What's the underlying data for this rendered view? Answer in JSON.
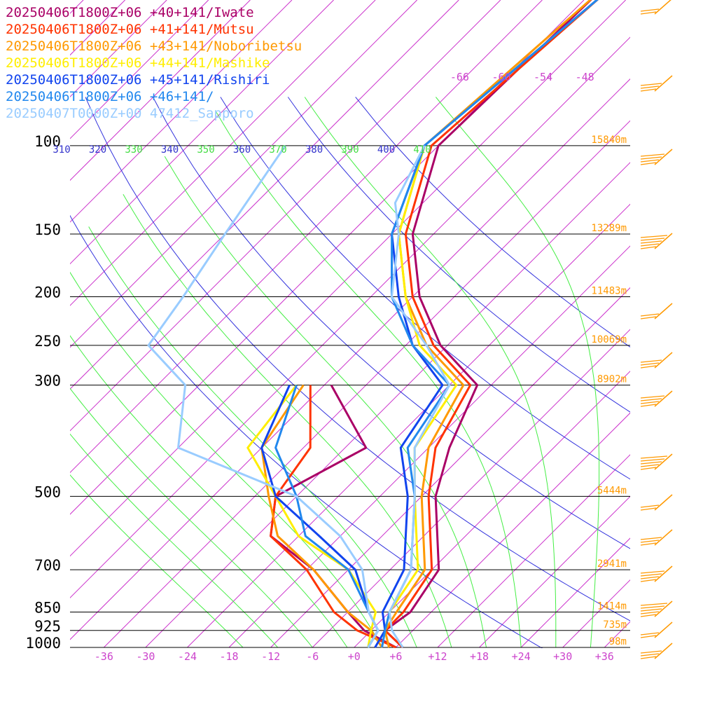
{
  "chart_data": {
    "type": "line",
    "title": "",
    "xlabel": "",
    "ylabel": "",
    "x_ticks": [
      "-36",
      "-30",
      "-24",
      "-18",
      "-12",
      "-6",
      "+0",
      "+6",
      "+12",
      "+18",
      "+24",
      "+30",
      "+36"
    ],
    "pressure_levels": [
      {
        "p": 100,
        "label": "100",
        "height": "15840m"
      },
      {
        "p": 150,
        "label": "150",
        "height": "13289m"
      },
      {
        "p": 200,
        "label": "200",
        "height": "11483m"
      },
      {
        "p": 250,
        "label": "250",
        "height": "10069m"
      },
      {
        "p": 300,
        "label": "300",
        "height": "8902m"
      },
      {
        "p": 500,
        "label": "500",
        "height": "5444m"
      },
      {
        "p": 700,
        "label": "700",
        "height": "2941m"
      },
      {
        "p": 850,
        "label": "850",
        "height": "1414m"
      },
      {
        "p": 925,
        "label": "925",
        "height": "735m"
      },
      {
        "p": 1000,
        "label": "1000",
        "height": "98m"
      }
    ],
    "top_isotherm_labels": [
      "-66",
      "-60",
      "-54",
      "-48"
    ],
    "theta_labels": [
      {
        "text": "310",
        "kind": "theta"
      },
      {
        "text": "320",
        "kind": "theta"
      },
      {
        "text": "330",
        "kind": "thetae"
      },
      {
        "text": "340",
        "kind": "theta"
      },
      {
        "text": "350",
        "kind": "thetae"
      },
      {
        "text": "360",
        "kind": "theta"
      },
      {
        "text": "370",
        "kind": "thetae"
      },
      {
        "text": "380",
        "kind": "theta"
      },
      {
        "text": "390",
        "kind": "thetae"
      },
      {
        "text": "400",
        "kind": "theta"
      },
      {
        "text": "410",
        "kind": "thetae"
      }
    ],
    "series": [
      {
        "name": "20250406T1800Z+06 +40+141/Iwate",
        "color": "#aa0066",
        "temp": [
          [
            1000,
            7
          ],
          [
            925,
            2
          ],
          [
            850,
            3
          ],
          [
            700,
            1
          ],
          [
            500,
            -10
          ],
          [
            400,
            -15
          ],
          [
            300,
            -20
          ],
          [
            250,
            -31
          ],
          [
            200,
            -41
          ],
          [
            150,
            -51
          ],
          [
            100,
            -60
          ],
          [
            50,
            -59
          ]
        ],
        "dew": [
          [
            1000,
            6
          ],
          [
            925,
            -1
          ],
          [
            850,
            -6
          ],
          [
            700,
            -17
          ],
          [
            600,
            -28
          ],
          [
            500,
            -33
          ],
          [
            400,
            -27
          ],
          [
            300,
            -41
          ]
        ]
      },
      {
        "name": "20250406T1800Z+06 +41+141/Mutsu",
        "color": "#ff3300",
        "temp": [
          [
            1000,
            7
          ],
          [
            925,
            2
          ],
          [
            850,
            2
          ],
          [
            700,
            0
          ],
          [
            500,
            -11
          ],
          [
            400,
            -17
          ],
          [
            300,
            -21
          ],
          [
            250,
            -32
          ],
          [
            200,
            -42
          ],
          [
            150,
            -52
          ],
          [
            100,
            -61
          ],
          [
            50,
            -58
          ]
        ],
        "dew": [
          [
            1000,
            6
          ],
          [
            925,
            -2
          ],
          [
            850,
            -8
          ],
          [
            700,
            -18
          ],
          [
            600,
            -28
          ],
          [
            500,
            -33
          ],
          [
            400,
            -35
          ],
          [
            300,
            -44
          ]
        ]
      },
      {
        "name": "20250406T1800Z+06 +43+141/Noboribetsu",
        "color": "#ff9900",
        "temp": [
          [
            1000,
            5
          ],
          [
            925,
            2
          ],
          [
            850,
            1
          ],
          [
            700,
            -1
          ],
          [
            500,
            -12
          ],
          [
            400,
            -18
          ],
          [
            300,
            -22
          ],
          [
            250,
            -33
          ],
          [
            200,
            -43
          ],
          [
            150,
            -53
          ],
          [
            100,
            -62
          ],
          [
            50,
            -59
          ]
        ],
        "dew": [
          [
            1000,
            4
          ],
          [
            925,
            0
          ],
          [
            850,
            -6
          ],
          [
            700,
            -17
          ],
          [
            600,
            -27
          ],
          [
            500,
            -34
          ],
          [
            400,
            -42
          ],
          [
            300,
            -45
          ]
        ]
      },
      {
        "name": "20250406T1800Z+06 +44+141/Mashike",
        "color": "#ffee00",
        "temp": [
          [
            1000,
            4
          ],
          [
            925,
            2
          ],
          [
            850,
            0
          ],
          [
            700,
            -2
          ],
          [
            500,
            -13
          ],
          [
            400,
            -20
          ],
          [
            300,
            -23
          ],
          [
            250,
            -34
          ],
          [
            200,
            -43
          ],
          [
            150,
            -53
          ],
          [
            100,
            -62
          ],
          [
            50,
            -58
          ]
        ],
        "dew": [
          [
            1000,
            2
          ],
          [
            925,
            0
          ],
          [
            850,
            -2
          ],
          [
            700,
            -12
          ],
          [
            600,
            -24
          ],
          [
            500,
            -33
          ],
          [
            400,
            -44
          ],
          [
            300,
            -46
          ]
        ]
      },
      {
        "name": "20250406T1800Z+06 +45+141/Rishiri",
        "color": "#1144ee",
        "temp": [
          [
            1000,
            3
          ],
          [
            925,
            2
          ],
          [
            850,
            -1
          ],
          [
            700,
            -4
          ],
          [
            500,
            -14
          ],
          [
            400,
            -22
          ],
          [
            300,
            -25
          ],
          [
            250,
            -35
          ],
          [
            200,
            -44
          ],
          [
            150,
            -54
          ],
          [
            100,
            -62
          ],
          [
            50,
            -58
          ]
        ],
        "dew": [
          [
            1000,
            2
          ],
          [
            925,
            1
          ],
          [
            850,
            -3
          ],
          [
            700,
            -11
          ],
          [
            600,
            -21
          ],
          [
            500,
            -33
          ],
          [
            400,
            -42
          ],
          [
            300,
            -47
          ]
        ]
      },
      {
        "name": "20250406T1800Z+06 +46+141/",
        "color": "#2288ee",
        "temp": [
          [
            1000,
            4
          ],
          [
            925,
            2
          ],
          [
            850,
            0
          ],
          [
            700,
            -3
          ],
          [
            500,
            -13
          ],
          [
            400,
            -21
          ],
          [
            300,
            -24
          ],
          [
            250,
            -35
          ],
          [
            200,
            -45
          ],
          [
            150,
            -54
          ],
          [
            100,
            -62
          ],
          [
            50,
            -58
          ]
        ],
        "dew": [
          [
            1000,
            2
          ],
          [
            925,
            1
          ],
          [
            850,
            -3
          ],
          [
            700,
            -12
          ],
          [
            600,
            -23
          ],
          [
            500,
            -30
          ],
          [
            400,
            -40
          ],
          [
            300,
            -46
          ]
        ]
      },
      {
        "name": "20250407T0000Z+00 47412_Sapporo",
        "color": "#99ccff",
        "temp": [
          [
            1000,
            7
          ],
          [
            925,
            3
          ],
          [
            850,
            0
          ],
          [
            700,
            -3
          ],
          [
            500,
            -13
          ],
          [
            400,
            -20
          ],
          [
            300,
            -24
          ],
          [
            250,
            -33
          ],
          [
            200,
            -45
          ],
          [
            150,
            -53
          ],
          [
            130,
            -58
          ],
          [
            100,
            -62
          ]
        ],
        "dew": [
          [
            1000,
            2
          ],
          [
            925,
            1
          ],
          [
            850,
            -3
          ],
          [
            700,
            -10
          ],
          [
            600,
            -18
          ],
          [
            500,
            -30
          ],
          [
            400,
            -54
          ],
          [
            300,
            -62
          ],
          [
            250,
            -73
          ],
          [
            200,
            -75
          ],
          [
            150,
            -78
          ],
          [
            100,
            -82
          ]
        ]
      }
    ]
  }
}
